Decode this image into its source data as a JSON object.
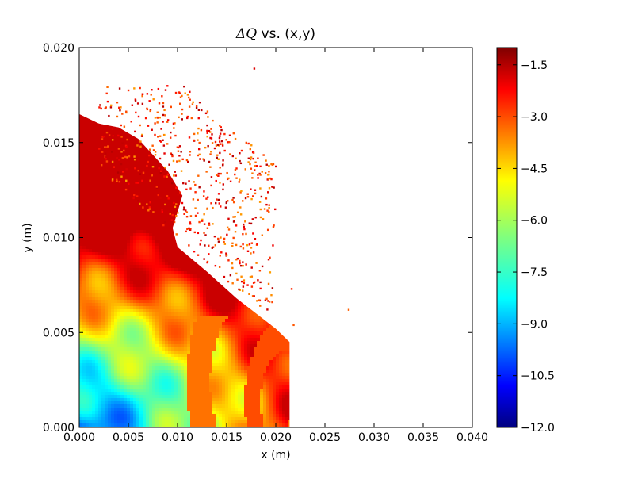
{
  "chart_data": {
    "type": "heatmap",
    "title_math": "ΔQ",
    "title_rest": " vs. (x,y)",
    "xlabel": "x (m)",
    "ylabel": "y (m)",
    "xlim": [
      0.0,
      0.04
    ],
    "ylim": [
      0.0,
      0.02
    ],
    "xticks": [
      "0.000",
      "0.005",
      "0.010",
      "0.015",
      "0.020",
      "0.025",
      "0.030",
      "0.035",
      "0.040"
    ],
    "yticks": [
      "0.000",
      "0.005",
      "0.010",
      "0.015",
      "0.020"
    ],
    "colorbar": {
      "min": -12.0,
      "max": -1.0,
      "ticks": [
        "−12.0",
        "−10.5",
        "−9.0",
        "−7.5",
        "−6.0",
        "−4.5",
        "−3.0",
        "−1.5"
      ],
      "tick_values": [
        -12.0,
        -10.5,
        -9.0,
        -7.5,
        -6.0,
        -4.5,
        -3.0,
        -1.5
      ],
      "colormap": "jet"
    },
    "grid": false
  }
}
